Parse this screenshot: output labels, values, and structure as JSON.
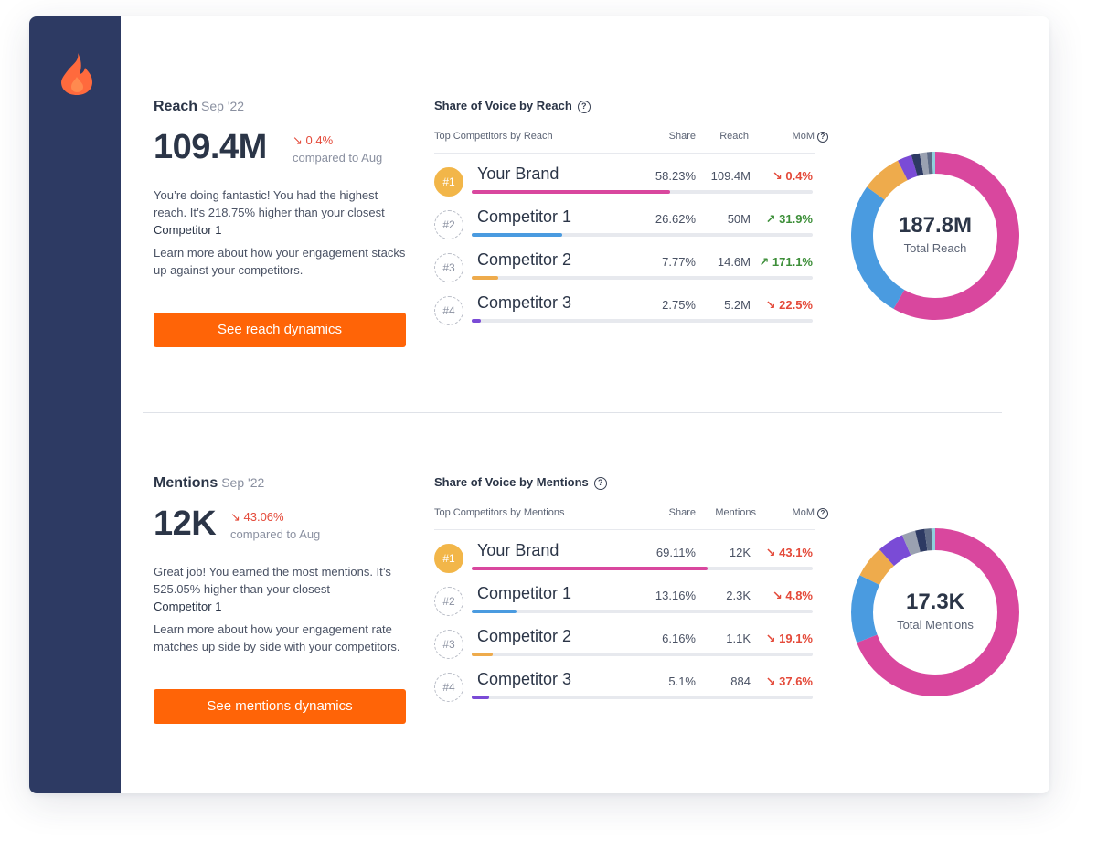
{
  "colors": {
    "sidebar": "#2d3a63",
    "accent": "#ff6407",
    "down": "#e44a3a",
    "up": "#3e8f3a",
    "bars": [
      "#d9479e",
      "#4a9be0",
      "#eeab4c",
      "#7a4bd6"
    ]
  },
  "sidebar": {
    "logo_icon": "flame-icon"
  },
  "reach": {
    "title": "Reach",
    "period": "Sep '22",
    "value": "109.4M",
    "delta": "↘ 0.4%",
    "compare": "compared to Aug",
    "desc_line1": "You’re doing fantastic! You had the highest reach. It’s 218.75% higher than your closest",
    "desc_strong": "Competitor 1",
    "desc2": "Learn more about how your engagement stacks up against your competitors.",
    "cta": "See reach dynamics",
    "sov_title": "Share of Voice by Reach",
    "headers": {
      "name": "Top Competitors by Reach",
      "share": "Share",
      "metric": "Reach",
      "mom": "MoM"
    },
    "rows": [
      {
        "rank": "#1",
        "name": "Your Brand",
        "share": "58.23%",
        "metric": "109.4M",
        "mom": "↘ 0.4%",
        "dir": "down",
        "pct": 0.5823
      },
      {
        "rank": "#2",
        "name": "Competitor 1",
        "share": "26.62%",
        "metric": "50M",
        "mom": "↗ 31.9%",
        "dir": "up",
        "pct": 0.2662
      },
      {
        "rank": "#3",
        "name": "Competitor 2",
        "share": "7.77%",
        "metric": "14.6M",
        "mom": "↗ 171.1%",
        "dir": "up",
        "pct": 0.0777
      },
      {
        "rank": "#4",
        "name": "Competitor 3",
        "share": "2.75%",
        "metric": "5.2M",
        "mom": "↘ 22.5%",
        "dir": "down",
        "pct": 0.0275
      }
    ],
    "donut_value": "187.8M",
    "donut_label": "Total Reach",
    "donut_segments": [
      {
        "color": "#d9479e",
        "pct": 58.23
      },
      {
        "color": "#4a9be0",
        "pct": 26.62
      },
      {
        "color": "#eeab4c",
        "pct": 7.77
      },
      {
        "color": "#7a4bd6",
        "pct": 2.75
      },
      {
        "color": "#2d3a63",
        "pct": 1.6
      },
      {
        "color": "#9aa1b1",
        "pct": 1.4
      },
      {
        "color": "#5e6b86",
        "pct": 1.0
      },
      {
        "color": "#8fd0dc",
        "pct": 0.63
      }
    ]
  },
  "mentions": {
    "title": "Mentions",
    "period": "Sep '22",
    "value": "12K",
    "delta": "↘ 43.06%",
    "compare": "compared to Aug",
    "desc_line1": "Great job! You earned the most mentions. It’s 525.05% higher than your closest",
    "desc_strong": "Competitor 1",
    "desc2": "Learn more about how your engagement rate matches up side by side with your competitors.",
    "cta": "See mentions dynamics",
    "sov_title": "Share of Voice by Mentions",
    "headers": {
      "name": "Top Competitors by Mentions",
      "share": "Share",
      "metric": "Mentions",
      "mom": "MoM"
    },
    "rows": [
      {
        "rank": "#1",
        "name": "Your Brand",
        "share": "69.11%",
        "metric": "12K",
        "mom": "↘ 43.1%",
        "dir": "down",
        "pct": 0.6911
      },
      {
        "rank": "#2",
        "name": "Competitor 1",
        "share": "13.16%",
        "metric": "2.3K",
        "mom": "↘ 4.8%",
        "dir": "down",
        "pct": 0.1316
      },
      {
        "rank": "#3",
        "name": "Competitor 2",
        "share": "6.16%",
        "metric": "1.1K",
        "mom": "↘ 19.1%",
        "dir": "down",
        "pct": 0.0616
      },
      {
        "rank": "#4",
        "name": "Competitor 3",
        "share": "5.1%",
        "metric": "884",
        "mom": "↘ 37.6%",
        "dir": "down",
        "pct": 0.051
      }
    ],
    "donut_value": "17.3K",
    "donut_label": "Total Mentions",
    "donut_segments": [
      {
        "color": "#d9479e",
        "pct": 69.11
      },
      {
        "color": "#4a9be0",
        "pct": 13.16
      },
      {
        "color": "#eeab4c",
        "pct": 6.16
      },
      {
        "color": "#7a4bd6",
        "pct": 5.1
      },
      {
        "color": "#9aa1b1",
        "pct": 2.6
      },
      {
        "color": "#2d3a63",
        "pct": 1.8
      },
      {
        "color": "#5e6b86",
        "pct": 1.3
      },
      {
        "color": "#8fd0dc",
        "pct": 0.77
      }
    ]
  }
}
